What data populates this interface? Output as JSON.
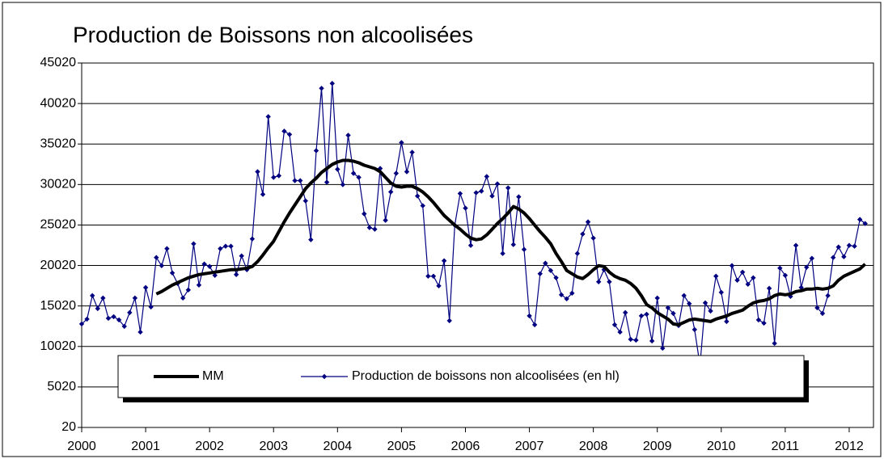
{
  "chart_data": {
    "type": "line",
    "title": "Production de Boissons non alcoolisées",
    "x": [
      2000,
      2000.083,
      2000.167,
      2000.25,
      2000.333,
      2000.417,
      2000.5,
      2000.583,
      2000.667,
      2000.75,
      2000.833,
      2000.917,
      2001,
      2001.083,
      2001.167,
      2001.25,
      2001.333,
      2001.417,
      2001.5,
      2001.583,
      2001.667,
      2001.75,
      2001.833,
      2001.917,
      2002,
      2002.083,
      2002.167,
      2002.25,
      2002.333,
      2002.417,
      2002.5,
      2002.583,
      2002.667,
      2002.75,
      2002.833,
      2002.917,
      2003,
      2003.083,
      2003.167,
      2003.25,
      2003.333,
      2003.417,
      2003.5,
      2003.583,
      2003.667,
      2003.75,
      2003.833,
      2003.917,
      2004,
      2004.083,
      2004.167,
      2004.25,
      2004.333,
      2004.417,
      2004.5,
      2004.583,
      2004.667,
      2004.75,
      2004.833,
      2004.917,
      2005,
      2005.083,
      2005.167,
      2005.25,
      2005.333,
      2005.417,
      2005.5,
      2005.583,
      2005.667,
      2005.75,
      2005.833,
      2005.917,
      2006,
      2006.083,
      2006.167,
      2006.25,
      2006.333,
      2006.417,
      2006.5,
      2006.583,
      2006.667,
      2006.75,
      2006.833,
      2006.917,
      2007,
      2007.083,
      2007.167,
      2007.25,
      2007.333,
      2007.417,
      2007.5,
      2007.583,
      2007.667,
      2007.75,
      2007.833,
      2007.917,
      2008,
      2008.083,
      2008.167,
      2008.25,
      2008.333,
      2008.417,
      2008.5,
      2008.583,
      2008.667,
      2008.75,
      2008.833,
      2008.917,
      2009,
      2009.083,
      2009.167,
      2009.25,
      2009.333,
      2009.417,
      2009.5,
      2009.583,
      2009.667,
      2009.75,
      2009.833,
      2009.917,
      2010,
      2010.083,
      2010.167,
      2010.25,
      2010.333,
      2010.417,
      2010.5,
      2010.583,
      2010.667,
      2010.75,
      2010.833,
      2010.917,
      2011,
      2011.083,
      2011.167,
      2011.25,
      2011.333,
      2011.417,
      2011.5,
      2011.583,
      2011.667,
      2011.75,
      2011.833,
      2011.917,
      2012,
      2012.083,
      2012.167,
      2012.25
    ],
    "series": [
      {
        "name": "MM",
        "color": "#000000",
        "values": [
          null,
          null,
          null,
          null,
          null,
          null,
          null,
          null,
          null,
          null,
          null,
          null,
          null,
          null,
          16500,
          16800,
          17200,
          17600,
          17900,
          18200,
          18500,
          18700,
          18900,
          19000,
          19100,
          19200,
          19300,
          19400,
          19500,
          19500,
          19600,
          19700,
          19900,
          20500,
          21300,
          22200,
          23000,
          24200,
          25400,
          26500,
          27500,
          28500,
          29500,
          30200,
          30800,
          31500,
          32000,
          32500,
          32800,
          33000,
          33000,
          32900,
          32700,
          32400,
          32200,
          32000,
          31600,
          30900,
          30200,
          29800,
          29700,
          29800,
          29800,
          29500,
          29100,
          28500,
          27800,
          27000,
          26200,
          25600,
          25000,
          24500,
          23900,
          23400,
          23200,
          23300,
          23800,
          24500,
          25200,
          25800,
          26500,
          27300,
          27000,
          26500,
          25800,
          25000,
          24200,
          23500,
          22700,
          21500,
          20500,
          19400,
          19000,
          18600,
          18400,
          18900,
          19500,
          20000,
          19900,
          19200,
          18700,
          18400,
          18200,
          17800,
          17200,
          16300,
          15200,
          14800,
          14200,
          13800,
          13400,
          12800,
          12700,
          13000,
          13300,
          13400,
          13300,
          13200,
          13100,
          13400,
          13600,
          13800,
          14100,
          14300,
          14500,
          15000,
          15400,
          15600,
          15700,
          15900,
          16300,
          16500,
          16400,
          16500,
          16800,
          16900,
          17100,
          17100,
          17200,
          17100,
          17200,
          17500,
          18200,
          18700,
          19000,
          19300,
          19600,
          20200
        ]
      },
      {
        "name": "Production de boissons non alcoolisées (en hl)",
        "color": "#000080",
        "values": [
          12800,
          13400,
          16300,
          14700,
          16000,
          13500,
          13700,
          13300,
          12500,
          14200,
          16000,
          11800,
          17300,
          14900,
          21000,
          20000,
          22100,
          19100,
          17800,
          16000,
          17000,
          22700,
          17600,
          20200,
          19900,
          18800,
          22100,
          22400,
          22400,
          18900,
          21200,
          19500,
          23300,
          31600,
          28800,
          38400,
          30900,
          31100,
          36600,
          36200,
          30500,
          30500,
          28000,
          23200,
          34200,
          41900,
          30300,
          42500,
          31900,
          30000,
          36100,
          31400,
          30900,
          26400,
          24700,
          24500,
          32000,
          25600,
          29100,
          31400,
          35200,
          31600,
          34000,
          28600,
          27400,
          18700,
          18700,
          17500,
          20600,
          13200,
          25000,
          28900,
          27100,
          22500,
          29000,
          29200,
          31000,
          28600,
          30100,
          21500,
          29600,
          22600,
          28500,
          22000,
          13800,
          12700,
          19000,
          20300,
          19400,
          18500,
          16400,
          15900,
          16600,
          21500,
          23900,
          25400,
          23400,
          18000,
          19500,
          18000,
          12700,
          11800,
          14200,
          10900,
          10800,
          13800,
          14000,
          10700,
          16000,
          9800,
          14800,
          14100,
          12600,
          16300,
          15300,
          12100,
          7700,
          15400,
          14400,
          18700,
          16700,
          13100,
          20000,
          18200,
          19200,
          17700,
          18500,
          13300,
          12900,
          17200,
          10400,
          19700,
          18800,
          16200,
          22500,
          17300,
          19800,
          20900,
          14800,
          14100,
          16300,
          21000,
          22300,
          21100,
          22500,
          22400,
          25700,
          25200
        ]
      }
    ],
    "xlim": [
      2000,
      2012.38
    ],
    "xticks": [
      2000,
      2001,
      2002,
      2003,
      2004,
      2005,
      2006,
      2007,
      2008,
      2009,
      2010,
      2011,
      2012
    ],
    "ylim": [
      20,
      45020
    ],
    "yticks": [
      20,
      5020,
      10020,
      15020,
      20020,
      25020,
      30020,
      35020,
      40020,
      45020
    ],
    "grid": true
  }
}
